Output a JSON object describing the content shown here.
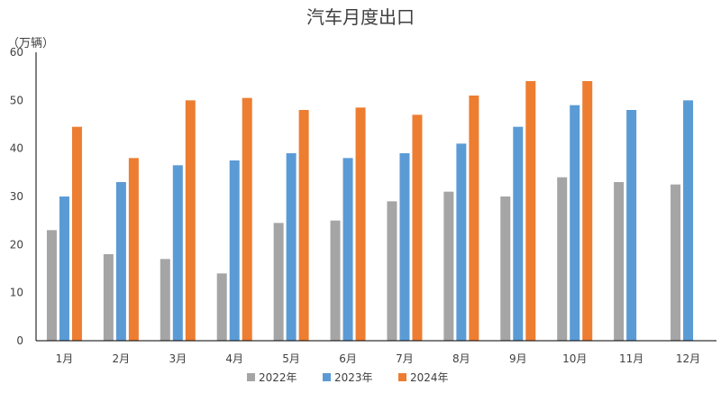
{
  "chart_data": {
    "type": "bar",
    "title": "汽车月度出口",
    "unit_label": "（万辆）",
    "categories": [
      "1月",
      "2月",
      "3月",
      "4月",
      "5月",
      "6月",
      "7月",
      "8月",
      "9月",
      "10月",
      "11月",
      "12月"
    ],
    "series": [
      {
        "name": "2022年",
        "color": "#a5a5a5",
        "values": [
          23,
          18,
          17,
          14,
          24.5,
          25,
          29,
          31,
          30,
          34,
          33,
          32.5
        ]
      },
      {
        "name": "2023年",
        "color": "#5b9bd5",
        "values": [
          30,
          33,
          36.5,
          37.5,
          39,
          38,
          39,
          41,
          44.5,
          49,
          48,
          50
        ]
      },
      {
        "name": "2024年",
        "color": "#ed7d31",
        "values": [
          44.5,
          38,
          50,
          50.5,
          48,
          48.5,
          47,
          51,
          54,
          54,
          null,
          null
        ]
      }
    ],
    "ylim": [
      0,
      60
    ],
    "yticks": [
      0,
      10,
      20,
      30,
      40,
      50,
      60
    ],
    "grid": false,
    "legend_position": "bottom"
  }
}
